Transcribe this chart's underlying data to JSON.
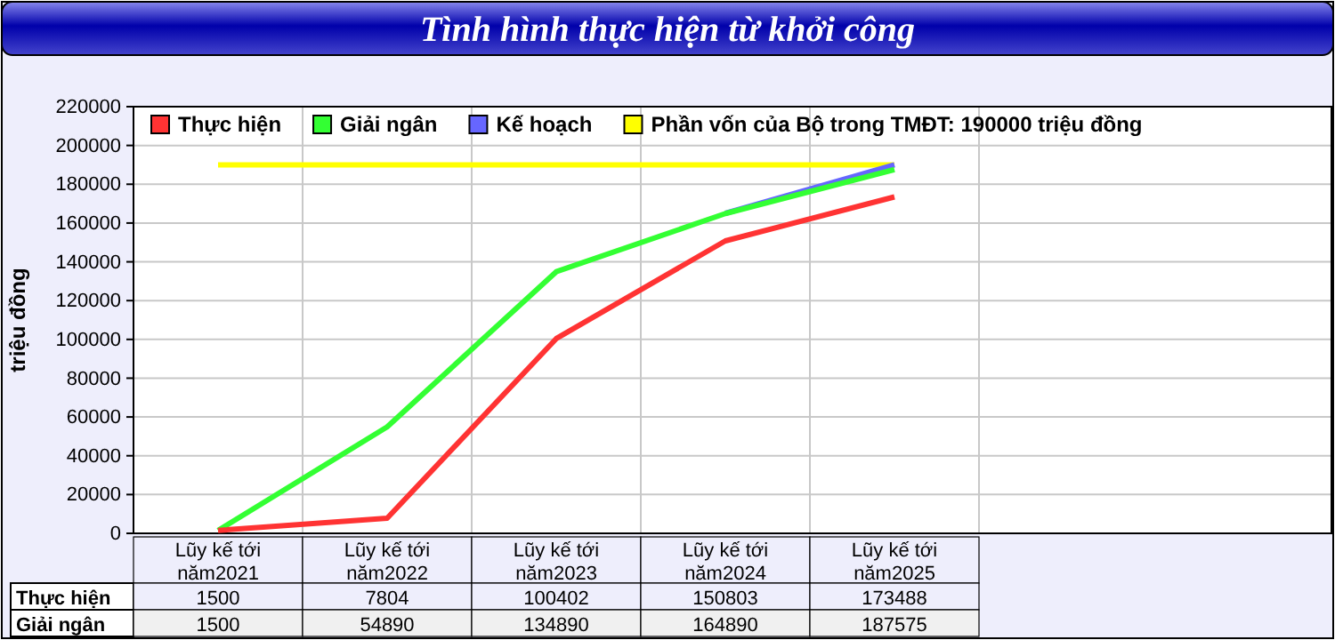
{
  "chart_data": {
    "type": "line",
    "title": "Tình hình thực hiện từ khởi công",
    "ylabel": "triệu đồng",
    "categories": [
      "Lũy kế tới năm2021",
      "Lũy kế tới năm2022",
      "Lũy kế tới năm2023",
      "Lũy kế tới năm2024",
      "Lũy kế tới năm2025"
    ],
    "series": [
      {
        "name": "Thực hiện",
        "color": "#ff3333",
        "values": [
          1500,
          7804,
          100402,
          150803,
          173488
        ],
        "value_labels": [
          "1500",
          "7804",
          "100402",
          "150803",
          "173488"
        ]
      },
      {
        "name": "Giải ngân",
        "color": "#33ff33",
        "values": [
          1500,
          54890,
          134890,
          164890,
          187575
        ],
        "value_labels": [
          "1500",
          "54890",
          "134890",
          "164890",
          "187575"
        ]
      },
      {
        "name": "Kế hoạch",
        "color": "#6666ff",
        "values": [
          null,
          null,
          null,
          165000,
          190000
        ]
      },
      {
        "name": "Phần vốn của Bộ trong TMĐT: 190000 triệu đồng",
        "color": "#ffff00",
        "values": [
          190000,
          190000,
          190000,
          190000,
          190000
        ]
      }
    ],
    "ylim": [
      0,
      220000
    ],
    "yticks": [
      0,
      20000,
      40000,
      60000,
      80000,
      100000,
      120000,
      140000,
      160000,
      180000,
      200000,
      220000
    ],
    "grid": true,
    "legend": "top",
    "marker": "none",
    "line_style": "solid"
  }
}
